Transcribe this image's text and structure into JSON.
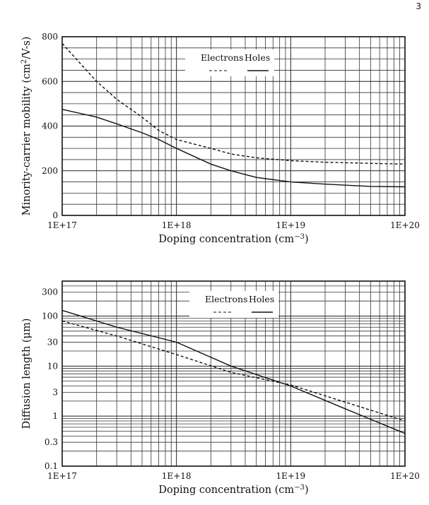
{
  "page_number": "3",
  "chart_data": [
    {
      "type": "line",
      "title": "",
      "xlabel": "Doping concentration (cm−3)",
      "xlabel_main": "Doping concentration (cm",
      "xlabel_sup": "−3",
      "xlabel_close": ")",
      "ylabel": "Minority-carrier mobility (cm2/V-s)",
      "ylabel_main": "Minority-carrier mobility (cm",
      "ylabel_sup": "2",
      "ylabel_close": "/V-s)",
      "xscale": "log",
      "yscale": "linear",
      "xlim": [
        1e+17,
        1e+20
      ],
      "ylim": [
        0,
        800
      ],
      "x_ticks": [
        1e+17,
        1e+18,
        1e+19,
        1e+20
      ],
      "x_tick_labels": [
        "1E+17",
        "1E+18",
        "1E+19",
        "1E+20"
      ],
      "y_ticks": [
        0,
        200,
        400,
        600,
        800
      ],
      "y_tick_labels": [
        "0",
        "200",
        "400",
        "600",
        "800"
      ],
      "grid": true,
      "legend": {
        "placement": "top-center",
        "entries": [
          "Electrons",
          "Holes"
        ]
      },
      "series": [
        {
          "name": "Electrons",
          "style": "dashed",
          "x": [
            1e+17,
            1.5e+17,
            2e+17,
            3e+17,
            5e+17,
            7e+17,
            1e+18,
            2e+18,
            3e+18,
            5e+18,
            1e+19,
            2e+19,
            5e+19,
            1e+20
          ],
          "y": [
            770,
            670,
            600,
            520,
            440,
            380,
            340,
            300,
            275,
            258,
            245,
            238,
            233,
            230
          ]
        },
        {
          "name": "Holes",
          "style": "solid",
          "x": [
            1e+17,
            2e+17,
            3e+17,
            5e+17,
            7e+17,
            1e+18,
            2e+18,
            3e+18,
            5e+18,
            1e+19,
            2e+19,
            5e+19,
            1e+20
          ],
          "y": [
            475,
            440,
            410,
            370,
            340,
            300,
            230,
            200,
            170,
            150,
            140,
            130,
            128
          ]
        }
      ]
    },
    {
      "type": "line",
      "title": "",
      "xlabel": "Doping concentration (cm−3)",
      "xlabel_main": "Doping concentration (cm",
      "xlabel_sup": "−3",
      "xlabel_close": ")",
      "ylabel": "Diffusion length (μm)",
      "xscale": "log",
      "yscale": "log",
      "xlim": [
        1e+17,
        1e+20
      ],
      "ylim": [
        0.1,
        500
      ],
      "x_ticks": [
        1e+17,
        1e+18,
        1e+19,
        1e+20
      ],
      "x_tick_labels": [
        "1E+17",
        "1E+18",
        "1E+19",
        "1E+20"
      ],
      "y_ticks": [
        0.1,
        0.3,
        1,
        3,
        10,
        30,
        100,
        300
      ],
      "y_tick_labels": [
        "0.1",
        "0.3",
        "1",
        "3",
        "10",
        "30",
        "100",
        "300"
      ],
      "grid": true,
      "legend": {
        "placement": "top-center",
        "entries": [
          "Electrons",
          "Holes"
        ]
      },
      "series": [
        {
          "name": "Electrons",
          "style": "dashed",
          "x": [
            1e+17,
            3e+17,
            1e+18,
            3e+18,
            1e+19,
            3e+19,
            1e+20
          ],
          "y": [
            80,
            40,
            17,
            7.5,
            4.2,
            1.9,
            0.8
          ]
        },
        {
          "name": "Holes",
          "style": "solid",
          "x": [
            1e+17,
            3e+17,
            1e+18,
            3e+18,
            1e+19,
            3e+19,
            1e+20
          ],
          "y": [
            130,
            60,
            30,
            10,
            4,
            1.4,
            0.45
          ]
        }
      ]
    }
  ]
}
